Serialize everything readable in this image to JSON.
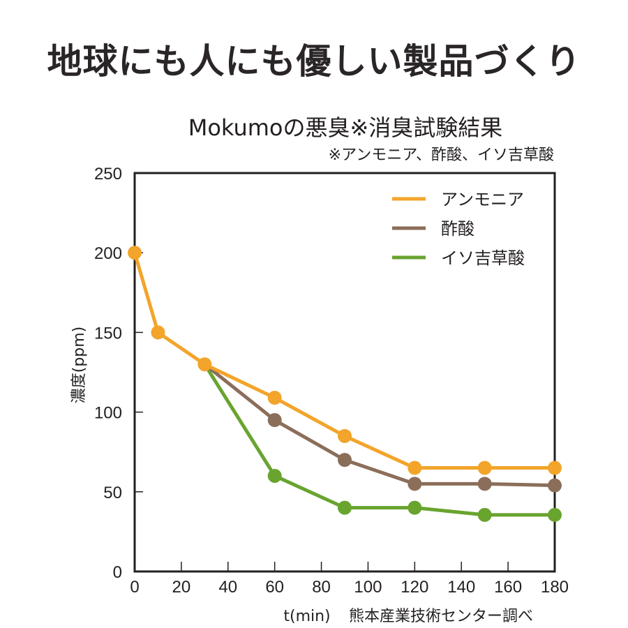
{
  "headline": "地球にも人にも優しい製品づくり",
  "chart_data": {
    "type": "line",
    "title": "Mokumoの悪臭※消臭試験結果",
    "subtitle": "※アンモニア、酢酸、イソ吉草酸",
    "xlabel": "t(min)",
    "ylabel": "濃度(ppm)",
    "source": "熊本産業技術センター調べ",
    "xlim": [
      0,
      180
    ],
    "ylim": [
      0,
      250
    ],
    "x_ticks": [
      0,
      20,
      40,
      60,
      80,
      100,
      120,
      140,
      160,
      180
    ],
    "y_ticks": [
      0,
      50,
      100,
      150,
      200,
      250
    ],
    "grid": false,
    "legend_position": "upper right (inside)",
    "series": [
      {
        "name": "アンモニア",
        "color": "#f3a42a",
        "x": [
          0,
          10,
          30,
          60,
          90,
          120,
          150,
          180
        ],
        "values": [
          200,
          150,
          130,
          109,
          85,
          65,
          65,
          65
        ],
        "markers": [
          true,
          true,
          true,
          true,
          true,
          true,
          true,
          true
        ]
      },
      {
        "name": "酢酸",
        "color": "#8b6e5a",
        "x": [
          30,
          60,
          90,
          120,
          150,
          180
        ],
        "values": [
          130,
          95,
          70,
          55,
          55,
          54
        ],
        "markers": [
          false,
          true,
          true,
          true,
          true,
          true
        ]
      },
      {
        "name": "イソ吉草酸",
        "color": "#69a42f",
        "x": [
          30,
          60,
          90,
          120,
          150,
          180
        ],
        "values": [
          130,
          60,
          40,
          40,
          35.5,
          35.5
        ],
        "markers": [
          false,
          true,
          true,
          true,
          true,
          true
        ]
      }
    ]
  },
  "colors": {
    "axis": "#231f20",
    "text": "#231f20"
  }
}
